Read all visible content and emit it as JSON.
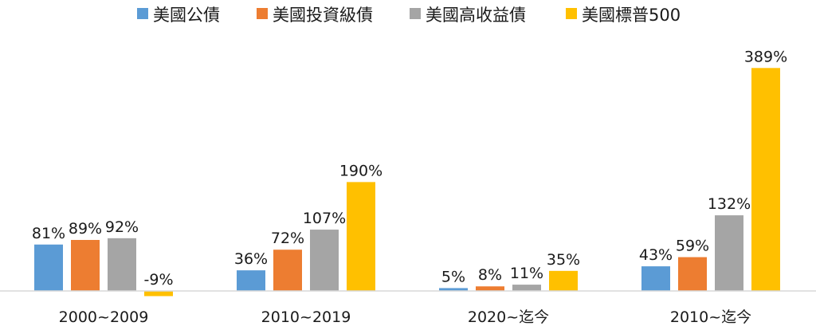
{
  "chart_data": {
    "type": "bar",
    "categories": [
      "2000~2009",
      "2010~2019",
      "2020~迄今",
      "2010~迄今"
    ],
    "series": [
      {
        "name": "美國公債",
        "color": "#5b9bd5",
        "values": [
          81,
          36,
          5,
          43
        ],
        "labels": [
          "81%",
          "36%",
          "5%",
          "43%"
        ]
      },
      {
        "name": "美國投資級債",
        "color": "#ed7d31",
        "values": [
          89,
          72,
          8,
          59
        ],
        "labels": [
          "89%",
          "72%",
          "8%",
          "59%"
        ]
      },
      {
        "name": "美國高收益債",
        "color": "#a5a5a5",
        "values": [
          92,
          107,
          11,
          132
        ],
        "labels": [
          "92%",
          "107%",
          "11%",
          "132%"
        ]
      },
      {
        "name": "美國標普500",
        "color": "#ffc000",
        "values": [
          -9,
          190,
          35,
          389
        ],
        "labels": [
          "-9%",
          "190%",
          "35%",
          "389%"
        ]
      }
    ],
    "legend_position": "top",
    "grid": false,
    "ylim": [
      -9,
      389
    ]
  }
}
